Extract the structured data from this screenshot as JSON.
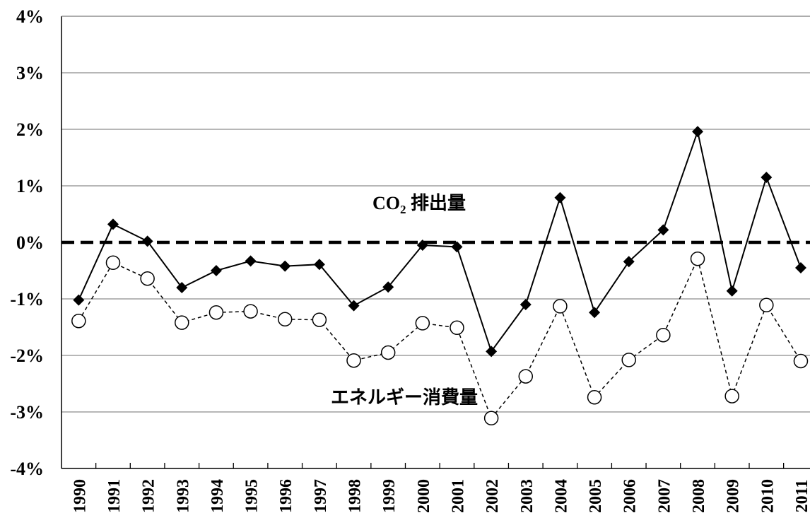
{
  "chart_data": {
    "type": "line",
    "title": "",
    "xlabel": "",
    "ylabel": "",
    "categories": [
      "1990",
      "1991",
      "1992",
      "1993",
      "1994",
      "1995",
      "1996",
      "1997",
      "1998",
      "1999",
      "2000",
      "2001",
      "2002",
      "2003",
      "2004",
      "2005",
      "2006",
      "2007",
      "2008",
      "2009",
      "2010",
      "2011"
    ],
    "ylim": [
      -4,
      4
    ],
    "yticks": [
      "-4%",
      "-3%",
      "-2%",
      "-1%",
      "0%",
      "1%",
      "2%",
      "3%",
      "4%"
    ],
    "ytick_values": [
      -4,
      -3,
      -2,
      -1,
      0,
      1,
      2,
      3,
      4
    ],
    "grid": true,
    "reference_line": {
      "value": 0,
      "style": "dashed",
      "color": "#000000"
    },
    "series": [
      {
        "name_main": "CO",
        "name_sub": "2",
        "name_suffix": " 排出量",
        "marker": "filled-diamond",
        "line_style": "solid",
        "color": "#000000",
        "values": [
          -1.02,
          0.32,
          0.02,
          -0.8,
          -0.5,
          -0.33,
          -0.42,
          -0.39,
          -1.12,
          -0.79,
          -0.05,
          -0.08,
          -1.93,
          -1.1,
          0.79,
          -1.24,
          -0.34,
          0.22,
          1.96,
          -0.86,
          1.15,
          -0.45
        ]
      },
      {
        "name": "エネルギー消費量",
        "marker": "open-circle",
        "line_style": "dotted",
        "color": "#000000",
        "values": [
          -1.39,
          -0.36,
          -0.64,
          -1.42,
          -1.24,
          -1.22,
          -1.36,
          -1.37,
          -2.09,
          -1.95,
          -1.43,
          -1.51,
          -3.11,
          -2.37,
          -1.13,
          -2.74,
          -2.08,
          -1.64,
          -0.29,
          -2.72,
          -1.11,
          -2.1
        ]
      }
    ]
  }
}
